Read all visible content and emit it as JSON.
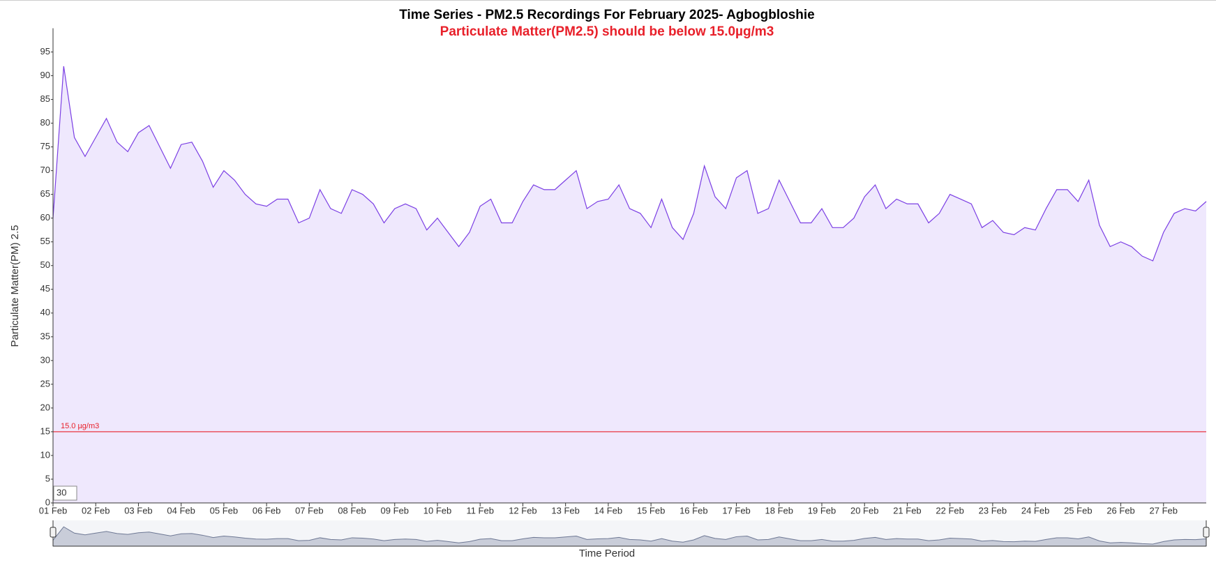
{
  "chart_data": {
    "type": "area",
    "title": "Time Series - PM2.5 Recordings For February 2025- Agbogbloshie",
    "subtitle": "Particulate Matter(PM2.5) should be below 15.0µg/m3",
    "y_label": "Particulate Matter(PM) 2.5",
    "x_label": "Time Period",
    "range_input": "30",
    "threshold": {
      "value": 15,
      "label": "15.0 µg/m3",
      "color": "#e8202a"
    },
    "color": "#7b3fe4",
    "fill": "#efe8fd",
    "ylim": [
      0,
      100
    ],
    "yticks": [
      0,
      5,
      10,
      15,
      20,
      25,
      30,
      35,
      40,
      45,
      50,
      55,
      60,
      65,
      70,
      75,
      80,
      85,
      90,
      95
    ],
    "xlim": [
      0,
      27
    ],
    "xticks": [
      {
        "value": 0,
        "label": "01 Feb"
      },
      {
        "value": 1,
        "label": "02 Feb"
      },
      {
        "value": 2,
        "label": "03 Feb"
      },
      {
        "value": 3,
        "label": "04 Feb"
      },
      {
        "value": 4,
        "label": "05 Feb"
      },
      {
        "value": 5,
        "label": "06 Feb"
      },
      {
        "value": 6,
        "label": "07 Feb"
      },
      {
        "value": 7,
        "label": "08 Feb"
      },
      {
        "value": 8,
        "label": "09 Feb"
      },
      {
        "value": 9,
        "label": "10 Feb"
      },
      {
        "value": 10,
        "label": "11 Feb"
      },
      {
        "value": 11,
        "label": "12 Feb"
      },
      {
        "value": 12,
        "label": "13 Feb"
      },
      {
        "value": 13,
        "label": "14 Feb"
      },
      {
        "value": 14,
        "label": "15 Feb"
      },
      {
        "value": 15,
        "label": "16 Feb"
      },
      {
        "value": 16,
        "label": "17 Feb"
      },
      {
        "value": 17,
        "label": "18 Feb"
      },
      {
        "value": 18,
        "label": "19 Feb"
      },
      {
        "value": 19,
        "label": "20 Feb"
      },
      {
        "value": 20,
        "label": "21 Feb"
      },
      {
        "value": 21,
        "label": "22 Feb"
      },
      {
        "value": 22,
        "label": "23 Feb"
      },
      {
        "value": 23,
        "label": "24 Feb"
      },
      {
        "value": 24,
        "label": "25 Feb"
      },
      {
        "value": 25,
        "label": "26 Feb"
      },
      {
        "value": 26,
        "label": "27 Feb"
      }
    ],
    "x": [
      0,
      0.25,
      0.5,
      0.75,
      1,
      1.25,
      1.5,
      1.75,
      2,
      2.25,
      2.5,
      2.75,
      3,
      3.25,
      3.5,
      3.75,
      4,
      4.25,
      4.5,
      4.75,
      5,
      5.25,
      5.5,
      5.75,
      6,
      6.25,
      6.5,
      6.75,
      7,
      7.25,
      7.5,
      7.75,
      8,
      8.25,
      8.5,
      8.75,
      9,
      9.25,
      9.5,
      9.75,
      10,
      10.25,
      10.5,
      10.75,
      11,
      11.25,
      11.5,
      11.75,
      12,
      12.25,
      12.5,
      12.75,
      13,
      13.25,
      13.5,
      13.75,
      14,
      14.25,
      14.5,
      14.75,
      15,
      15.25,
      15.5,
      15.75,
      16,
      16.25,
      16.5,
      16.75,
      17,
      17.25,
      17.5,
      17.75,
      18,
      18.25,
      18.5,
      18.75,
      19,
      19.25,
      19.5,
      19.75,
      20,
      20.25,
      20.5,
      20.75,
      21,
      21.25,
      21.5,
      21.75,
      22,
      22.25,
      22.5,
      22.75,
      23,
      23.25,
      23.5,
      23.75,
      24,
      24.25,
      24.5,
      24.75,
      25,
      25.25,
      25.5,
      25.75,
      26,
      26.25,
      26.5,
      26.75,
      27
    ],
    "values": [
      60,
      92,
      77,
      73,
      77,
      81,
      76,
      74,
      78,
      79.5,
      75,
      70.5,
      75.5,
      76,
      72,
      66.5,
      70,
      68,
      65,
      63,
      62.5,
      64,
      64,
      59,
      60,
      66,
      62,
      61,
      66,
      65,
      63,
      59,
      62,
      63,
      62,
      57.5,
      60,
      57,
      54,
      57,
      62.5,
      64,
      59,
      59,
      63.5,
      67,
      66,
      66,
      68,
      70,
      62,
      63.5,
      64,
      67,
      62,
      61,
      58,
      64,
      58,
      55.5,
      61,
      71,
      64.5,
      62,
      68.5,
      70,
      61,
      62,
      68,
      63.5,
      59,
      59,
      62,
      58,
      58,
      60,
      64.5,
      67,
      62,
      64,
      63,
      63,
      59,
      61,
      65,
      64,
      63,
      58,
      59.5,
      57,
      56.5,
      58,
      57.5,
      62,
      66,
      66,
      63.5,
      68,
      58.5,
      54,
      55,
      54,
      52,
      51,
      57,
      61,
      62,
      61.5,
      63.5
    ]
  }
}
